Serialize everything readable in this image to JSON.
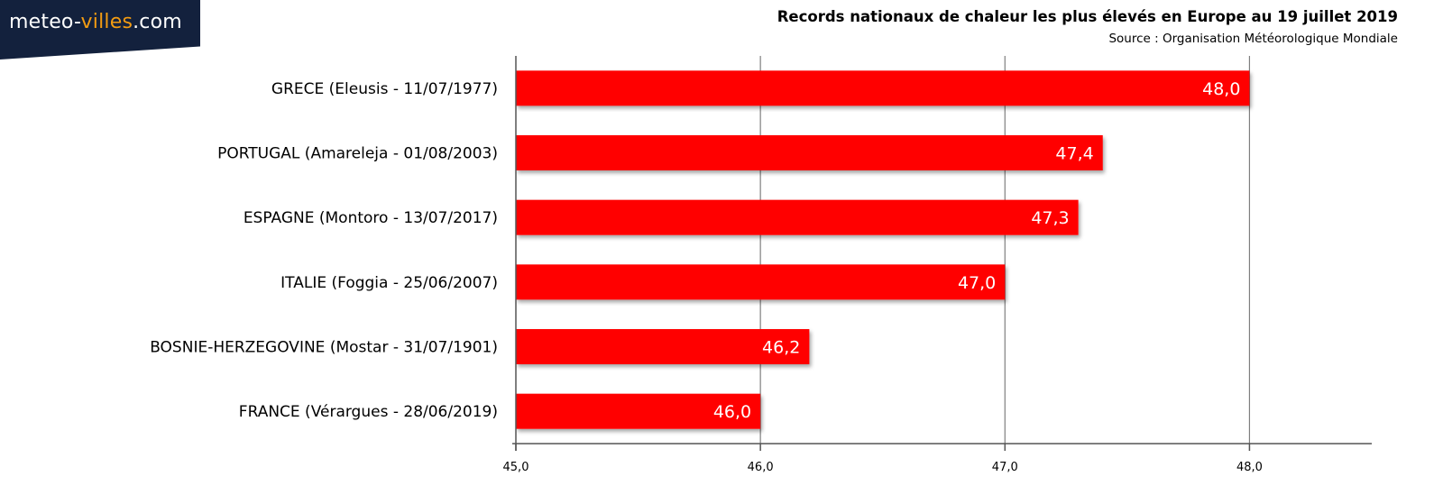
{
  "logo": {
    "text_main": "meteo-",
    "text_accent": "villes",
    "text_suffix": ".com"
  },
  "colors": {
    "bar": "#ff0000",
    "logo_bg": "#13213d",
    "logo_accent": "#f39c12",
    "grid": "#7f7f7f"
  },
  "chart_data": {
    "type": "bar",
    "orientation": "horizontal",
    "title": "Records nationaux de chaleur les plus élevés en Europe au 19 juillet 2019",
    "subtitle": "Source : Organisation Météorologique Mondiale",
    "categories": [
      "GRECE (Eleusis - 11/07/1977)",
      "PORTUGAL (Amareleja - 01/08/2003)",
      "ESPAGNE (Montoro - 13/07/2017)",
      "ITALIE (Foggia - 25/06/2007)",
      "BOSNIE-HERZEGOVINE (Mostar - 31/07/1901)",
      "FRANCE (Vérargues - 28/06/2019)"
    ],
    "values": [
      48.0,
      47.4,
      47.3,
      47.0,
      46.2,
      46.0
    ],
    "data_labels": [
      "48,0",
      "47,4",
      "47,3",
      "47,0",
      "46,2",
      "46,0"
    ],
    "xlim": [
      45.0,
      48.5
    ],
    "x_ticks": [
      45.0,
      46.0,
      47.0,
      48.0
    ],
    "x_tick_labels": [
      "45,0",
      "46,0",
      "47,0",
      "48,0"
    ],
    "grid": true
  }
}
